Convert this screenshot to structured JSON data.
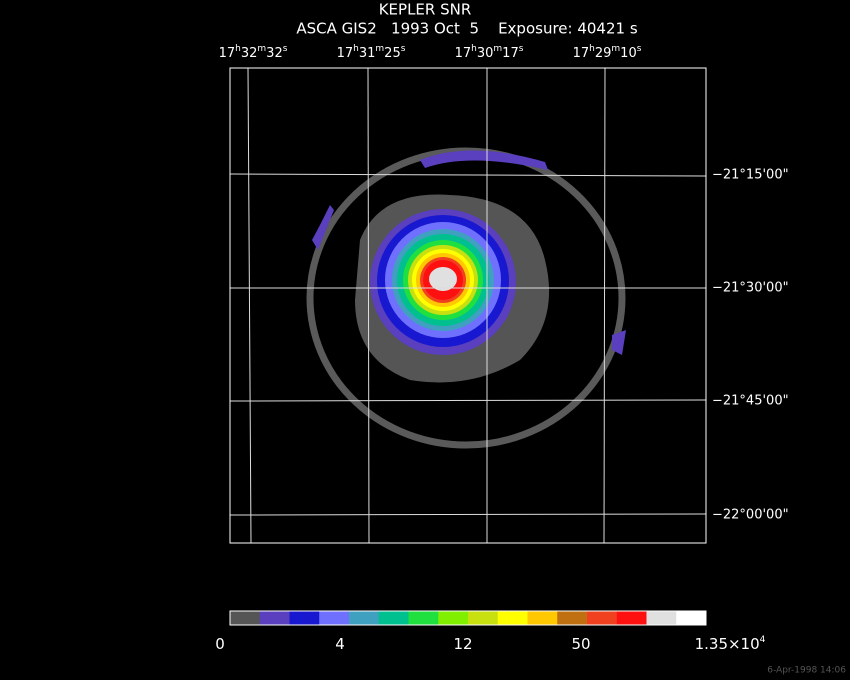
{
  "header": {
    "title": "KEPLER SNR",
    "subtitle": "ASCA GIS2   1993 Oct  5    Exposure: 40421 s"
  },
  "ra_labels": [
    [
      "17",
      "h",
      "32",
      "m",
      "32",
      "s"
    ],
    [
      "17",
      "h",
      "31",
      "m",
      "25",
      "s"
    ],
    [
      "17",
      "h",
      "30",
      "m",
      "17",
      "s"
    ],
    [
      "17",
      "h",
      "29",
      "m",
      "10",
      "s"
    ]
  ],
  "dec_labels": [
    "−21°15'00\"",
    "−21°30'00\"",
    "−21°45'00\"",
    "−22°00'00\""
  ],
  "colorbar": {
    "colors": [
      "#555555",
      "#5a3fbf",
      "#1818d0",
      "#7070ff",
      "#3fa0c0",
      "#00c090",
      "#20e040",
      "#80f000",
      "#c8e010",
      "#ffff00",
      "#ffc800",
      "#c07010",
      "#f04020",
      "#ff1010",
      "#e0e0e0",
      "#ffffff"
    ],
    "labels": [
      [
        "0"
      ],
      [
        "4"
      ],
      [
        "12"
      ],
      [
        "50"
      ],
      [
        "1.35×10",
        "4"
      ]
    ]
  },
  "footer": {
    "timestamp": "6-Apr-1998 14:06"
  }
}
